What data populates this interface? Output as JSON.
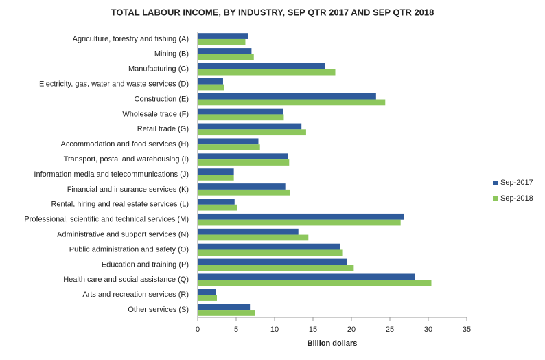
{
  "chart_data": {
    "type": "hbar",
    "title": "TOTAL LABOUR INCOME, BY INDUSTRY, SEP QTR 2017 AND SEP QTR 2018",
    "x_label": "Billion dollars",
    "categories": [
      "Agriculture, forestry and fishing (A)",
      "Mining (B)",
      "Manufacturing (C)",
      "Electricity, gas, water and waste services (D)",
      "Construction (E)",
      "Wholesale trade (F)",
      "Retail trade (G)",
      "Accommodation and food services (H)",
      "Transport, postal and warehousing (I)",
      "Information media and telecommunications (J)",
      "Financial and insurance services (K)",
      "Rental, hiring and real estate services (L)",
      "Professional, scientific and technical services (M)",
      "Administrative and support services (N)",
      "Public administration and safety (O)",
      "Education and training (P)",
      "Health care and social assistance (Q)",
      "Arts and recreation services (R)",
      "Other services (S)"
    ],
    "series": [
      {
        "name": "Sep-2017",
        "color": "#2f5b9b",
        "values": [
          6.6,
          7.0,
          16.6,
          3.3,
          23.2,
          11.1,
          13.5,
          7.9,
          11.7,
          4.7,
          11.4,
          4.8,
          26.8,
          13.1,
          18.5,
          19.4,
          28.3,
          2.4,
          6.8
        ]
      },
      {
        "name": "Sep-2018",
        "color": "#8dc75c",
        "values": [
          6.2,
          7.3,
          17.9,
          3.4,
          24.4,
          11.2,
          14.1,
          8.1,
          11.9,
          4.7,
          12.0,
          5.1,
          26.4,
          14.4,
          18.8,
          20.3,
          30.4,
          2.5,
          7.5
        ]
      }
    ],
    "xlim": [
      0,
      35
    ],
    "xticks": [
      0,
      5,
      10,
      15,
      20,
      25,
      30,
      35
    ],
    "legend": "right"
  }
}
